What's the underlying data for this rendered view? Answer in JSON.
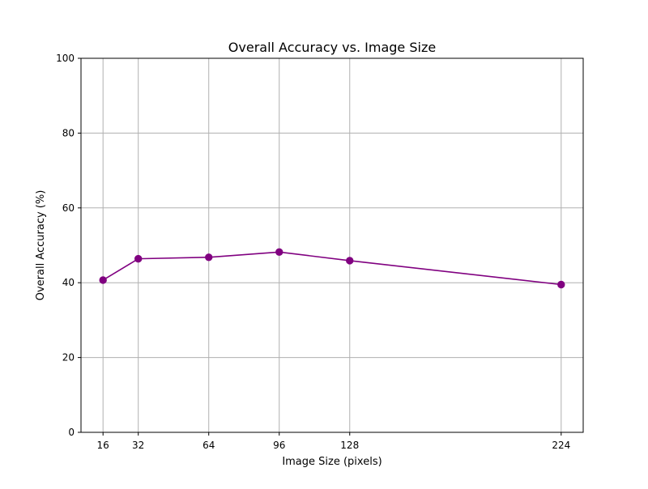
{
  "chart_data": {
    "type": "line",
    "title": "Overall Accuracy vs. Image Size",
    "xlabel": "Image Size (pixels)",
    "ylabel": "Overall Accuracy (%)",
    "x": [
      16,
      32,
      64,
      96,
      128,
      224
    ],
    "series": [
      {
        "values": [
          40.7,
          46.4,
          46.8,
          48.2,
          45.9,
          39.5
        ],
        "color": "#800080",
        "marker": "circle"
      }
    ],
    "xlim": [
      6,
      234
    ],
    "ylim": [
      0,
      100
    ],
    "xticks": [
      16,
      32,
      64,
      96,
      128,
      224
    ],
    "yticks": [
      0,
      20,
      40,
      60,
      80,
      100
    ],
    "grid": true,
    "colors": {
      "grid": "#b0b0b0",
      "axes": "#000000",
      "line": "#800080"
    }
  }
}
